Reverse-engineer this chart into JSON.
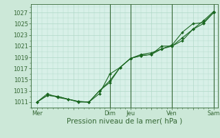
{
  "background_color": "#cce8d8",
  "plot_bg_color": "#d8f0e8",
  "grid_color": "#b0d8c8",
  "line_color": "#1a6620",
  "marker_color": "#1a6620",
  "xlabel_text": "Pression niveau de la mer( hPa )",
  "ylim": [
    1010.0,
    1028.5
  ],
  "yticks": [
    1011,
    1013,
    1015,
    1017,
    1019,
    1021,
    1023,
    1025,
    1027
  ],
  "xtick_labels": [
    "Mer",
    "",
    "Dim",
    "Jeu",
    "",
    "Ven",
    "",
    "Sam"
  ],
  "xtick_positions": [
    0,
    1.75,
    3.5,
    4.5,
    5.5,
    6.5,
    7.5,
    8.5
  ],
  "series": [
    {
      "x": [
        0,
        0.5,
        1.0,
        1.5,
        2.0,
        2.5,
        3.0,
        3.5,
        4.0,
        4.5,
        5.0,
        5.5,
        6.0,
        6.5,
        7.0,
        7.5,
        8.0,
        8.5
      ],
      "y": [
        1011.0,
        1012.2,
        1012.0,
        1011.5,
        1011.1,
        1011.0,
        1013.0,
        1014.5,
        1017.2,
        1018.8,
        1019.3,
        1019.5,
        1021.0,
        1021.0,
        1022.0,
        1024.0,
        1025.0,
        1027.0
      ]
    },
    {
      "x": [
        0,
        0.5,
        1.0,
        1.5,
        2.0,
        2.5,
        3.0,
        3.5,
        4.0,
        4.5,
        5.0,
        5.5,
        6.0,
        6.5,
        7.0,
        7.5,
        8.0,
        8.5
      ],
      "y": [
        1011.0,
        1012.5,
        1011.8,
        1011.5,
        1011.0,
        1011.0,
        1012.5,
        1016.0,
        1017.2,
        1018.8,
        1019.3,
        1019.5,
        1020.5,
        1021.0,
        1022.5,
        1024.0,
        1025.5,
        1027.2
      ]
    },
    {
      "x": [
        0,
        0.5,
        1.0,
        1.5,
        2.0,
        2.5,
        3.0,
        3.5,
        4.0,
        4.5,
        5.0,
        5.5,
        6.0,
        6.5,
        7.0,
        7.5,
        8.0,
        8.5
      ],
      "y": [
        1011.0,
        1012.2,
        1012.0,
        1011.5,
        1011.1,
        1011.0,
        1013.0,
        1014.8,
        1017.2,
        1018.8,
        1019.5,
        1019.8,
        1020.5,
        1021.2,
        1023.5,
        1025.0,
        1025.2,
        1027.0
      ]
    }
  ],
  "vline_positions": [
    3.5,
    4.5,
    6.5,
    8.5
  ],
  "vline_color": "#336633",
  "tick_color": "#336633",
  "tick_fontsize": 6,
  "label_fontsize": 7.5,
  "xlim": [
    -0.3,
    8.7
  ]
}
